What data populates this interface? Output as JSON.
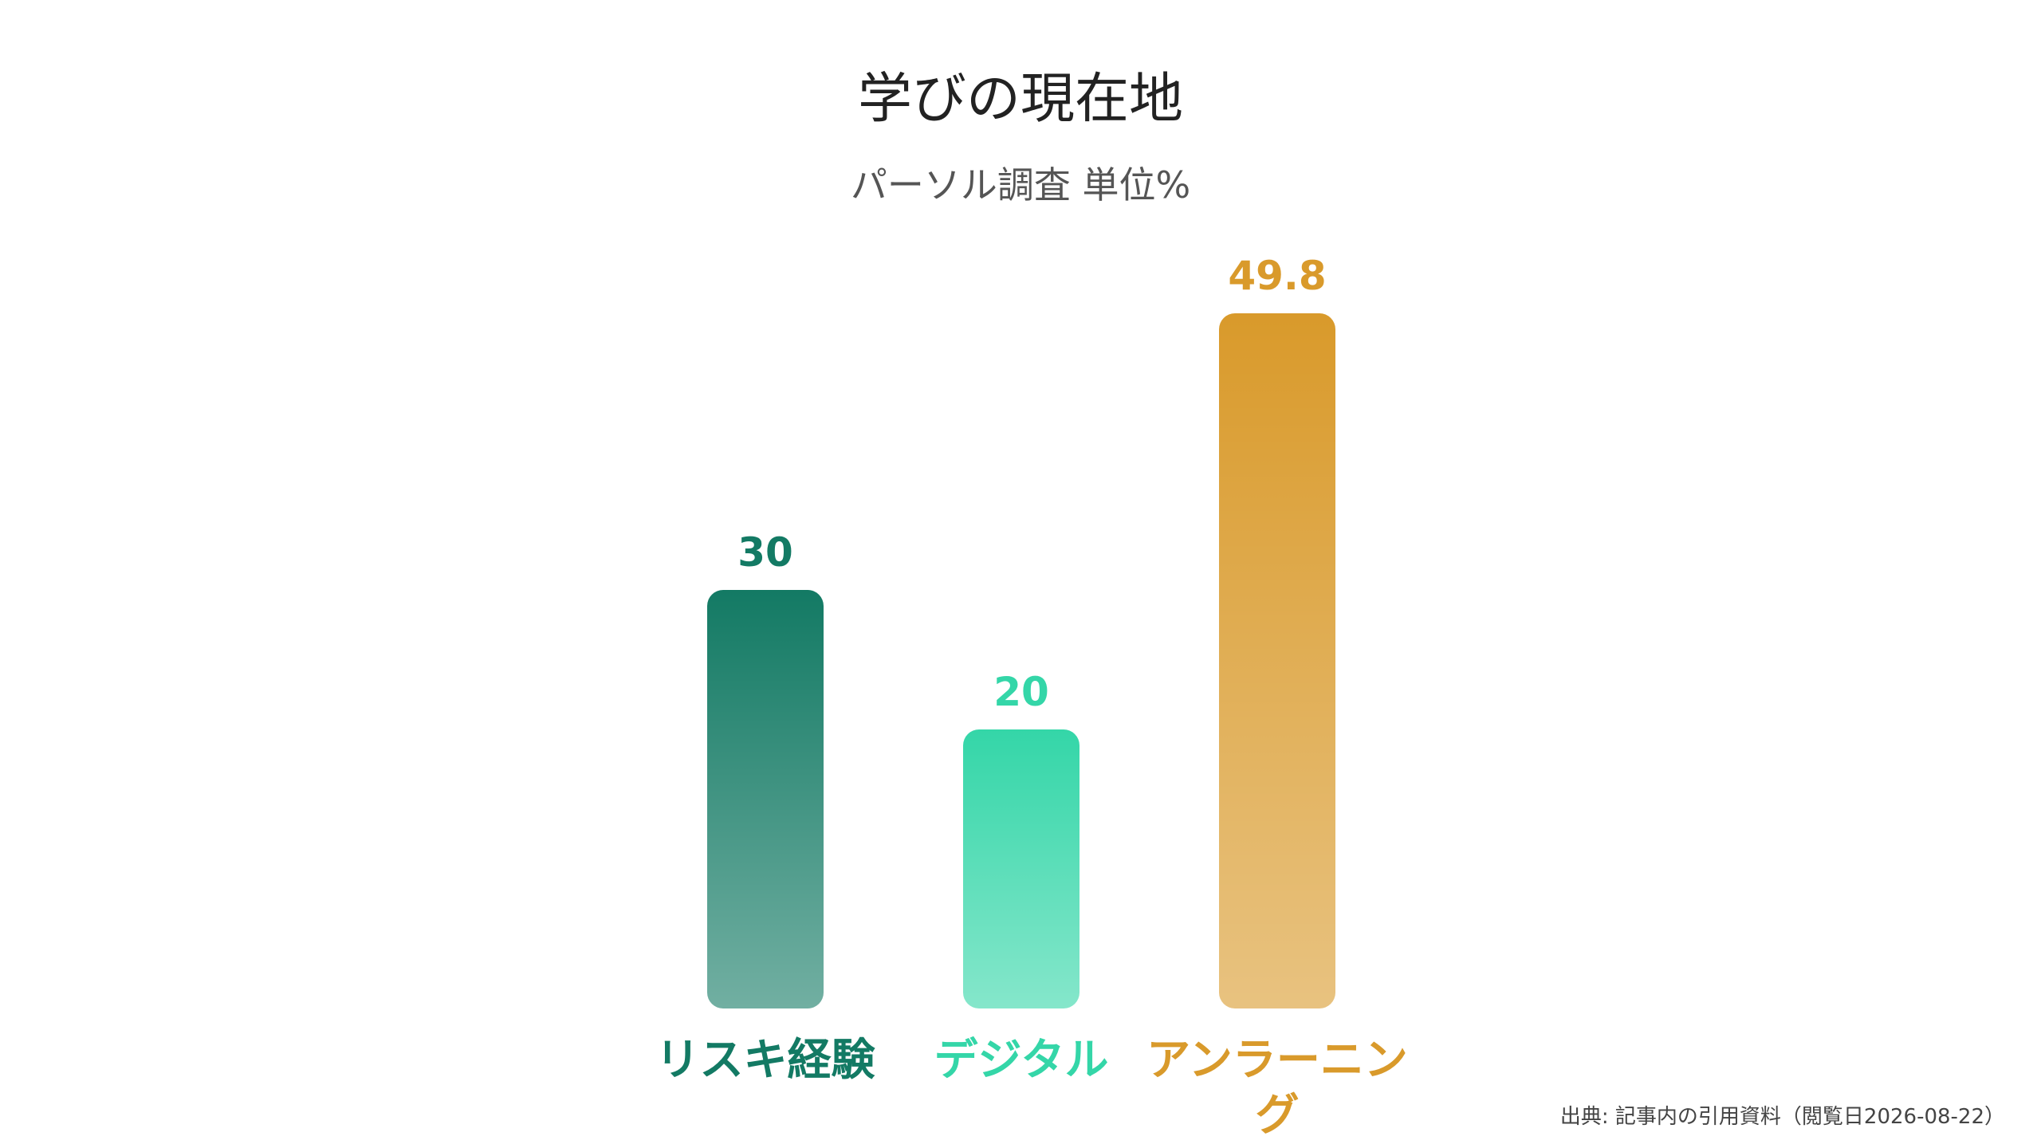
{
  "chart_data": {
    "type": "bar",
    "title": "学びの現在地",
    "subtitle": "パーソル調査 単位%",
    "categories": [
      "リスキ経験",
      "デジタル",
      "アンラーニング"
    ],
    "values": [
      30,
      20,
      49.8
    ],
    "colors": [
      "#137a64",
      "#34d6a8",
      "#d99a2b"
    ],
    "source": "出典: 記事内の引用資料（閲覧日2026-08-22）"
  }
}
